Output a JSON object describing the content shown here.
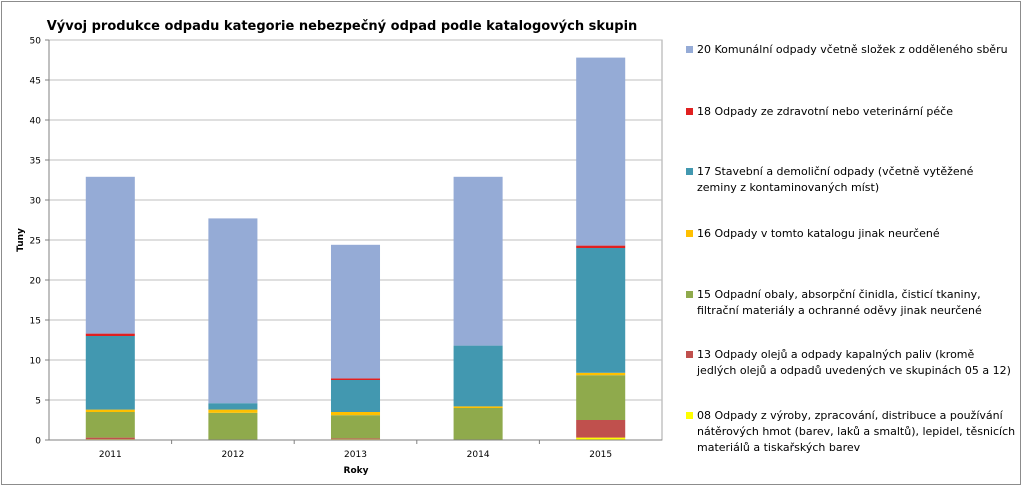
{
  "chart_data": {
    "type": "bar",
    "stacked": true,
    "title": "Vývoj produkce odpadu kategorie nebezpečný odpad podle katalogových skupin",
    "xlabel": "Roky",
    "ylabel": "Tuny",
    "ylim": [
      0,
      50
    ],
    "yticks": [
      "0",
      "5",
      "10",
      "15",
      "20",
      "25",
      "30",
      "35",
      "40",
      "45",
      "50"
    ],
    "grid": true,
    "legend_position": "right",
    "categories": [
      "2011",
      "2012",
      "2013",
      "2014",
      "2015"
    ],
    "series": [
      {
        "name": "08 Odpady z výroby, zpracování, distribuce a používání nátěrových hmot (barev, laků a smaltů), lepidel, těsnicích materiálů a tiskařských barev",
        "color": "#ffff00",
        "values": [
          0.1,
          0,
          0.1,
          0,
          0.3
        ]
      },
      {
        "name": "13 Odpady olejů a odpady kapalných paliv (kromě jedlých olejů a odpadů uvedených ve skupinách 05 a 12)",
        "color": "#c0504d",
        "values": [
          0.2,
          0,
          0.1,
          0,
          2.2
        ]
      },
      {
        "name": "15 Odpadní obaly, absorpční činidla, čisticí tkaniny, filtrační materiály a ochranné oděvy jinak neurčené",
        "color": "#8faa4c",
        "values": [
          3.2,
          3.4,
          2.9,
          4,
          5.6
        ]
      },
      {
        "name": "16 Odpady v tomto katalogu jinak neurčené",
        "color": "#ffc000",
        "values": [
          0.3,
          0.4,
          0.4,
          0.2,
          0.3
        ]
      },
      {
        "name": "17 Stavební a demoliční odpady (včetně vytěžené zeminy z kontaminovaných míst)",
        "color": "#4298b0",
        "values": [
          9.2,
          0.8,
          4,
          7.6,
          15.6
        ]
      },
      {
        "name": "18 Odpady ze zdravotní nebo veterinární péče",
        "color": "#e02020",
        "values": [
          0.3,
          0,
          0.2,
          0,
          0.3
        ]
      },
      {
        "name": "20 Komunální odpady včetně složek z odděleného sběru",
        "color": "#95abd6",
        "values": [
          19.6,
          23.1,
          16.7,
          21.1,
          23.5
        ]
      }
    ]
  }
}
